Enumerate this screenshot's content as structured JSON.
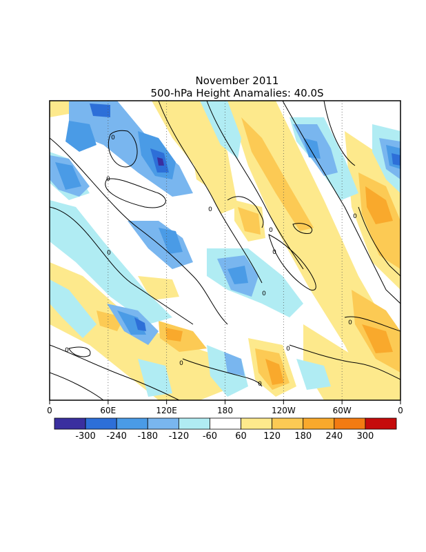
{
  "chart_data": {
    "type": "heatmap",
    "title": "November 2011",
    "subtitle": "500-hPa Height Anamalies: 40.0S",
    "x_ticks": [
      {
        "lon": 0,
        "label": "0"
      },
      {
        "lon": 60,
        "label": "60E"
      },
      {
        "lon": 120,
        "label": "120E"
      },
      {
        "lon": 180,
        "label": "180"
      },
      {
        "lon": 240,
        "label": "120W"
      },
      {
        "lon": 300,
        "label": "60W"
      },
      {
        "lon": 360,
        "label": "0"
      }
    ],
    "xlim": [
      0,
      360
    ],
    "dotted_meridians": [
      60,
      120,
      180,
      240,
      300
    ],
    "contour_label": "0",
    "colorbar": {
      "colors": [
        "#3a2f9f",
        "#2d6fd8",
        "#4a9be6",
        "#79b6ef",
        "#b0ecf3",
        "#ffffff",
        "#fde98c",
        "#fcca54",
        "#f9a92c",
        "#f37b12",
        "#c50b0b"
      ],
      "labels": [
        "-300",
        "-240",
        "-180",
        "-120",
        "-60",
        "60",
        "120",
        "180",
        "240",
        "300"
      ]
    },
    "legend_levels": {
      "weak_negative": "#b0ecf3",
      "negative": "#79b6ef",
      "moderate_negative": "#4a9be6",
      "strong_negative": "#2d6fd8",
      "extreme_negative": "#3a2f9f",
      "weak_positive": "#fde98c",
      "positive": "#fcca54",
      "moderate_positive": "#f9a92c"
    }
  }
}
